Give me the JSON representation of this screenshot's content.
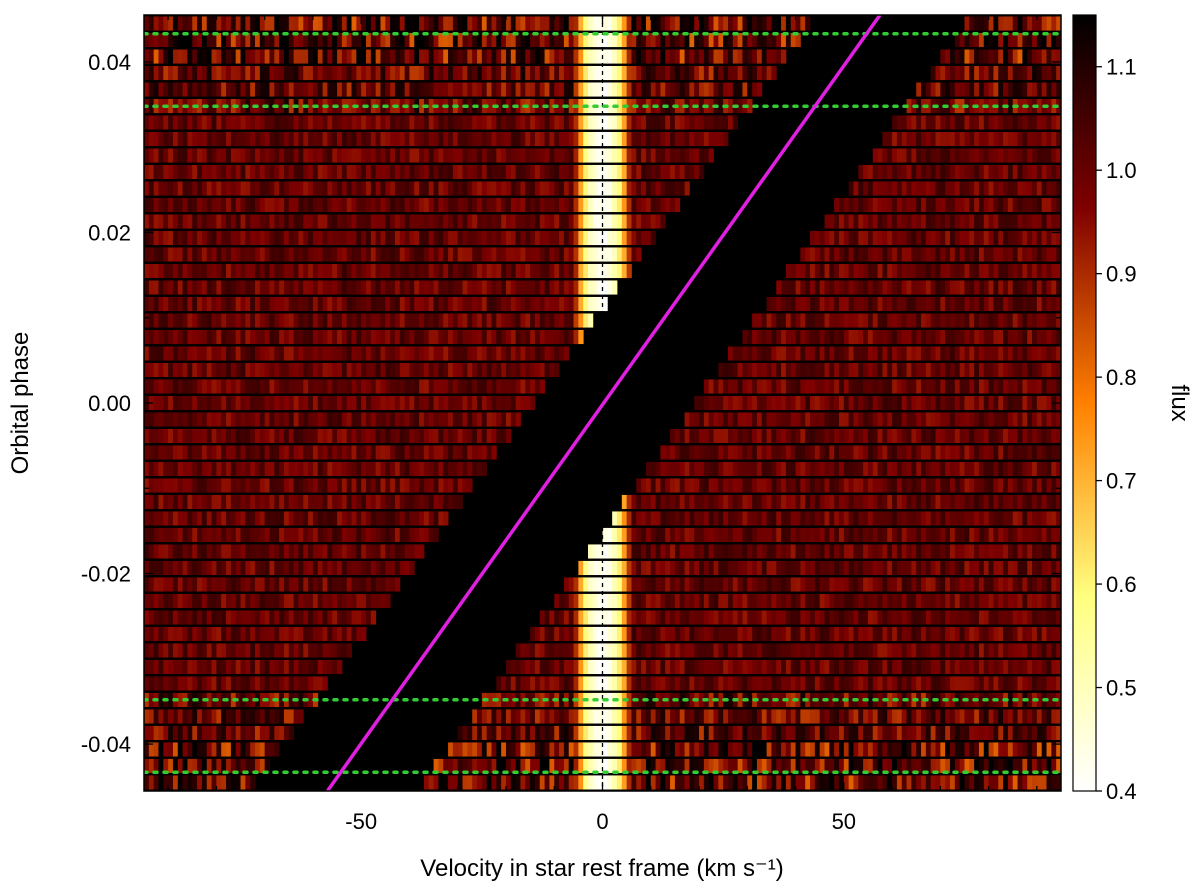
{
  "chart_data": {
    "type": "heatmap",
    "title": "",
    "xlabel": "Velocity in star rest frame (km s⁻¹)",
    "ylabel": "Orbital phase",
    "xlim": [
      -95,
      95
    ],
    "ylim": [
      -0.0455,
      0.0455
    ],
    "x_ticks": [
      -50,
      0,
      50
    ],
    "x_tick_labels": [
      "-50",
      "0",
      "50"
    ],
    "y_ticks": [
      -0.04,
      -0.02,
      0.0,
      0.02,
      0.04
    ],
    "y_tick_labels": [
      "-0.04",
      "-0.02",
      "0.00",
      "0.02",
      "0.04"
    ],
    "colorbar": {
      "label": "flux",
      "range": [
        0.4,
        1.15
      ],
      "ticks": [
        0.4,
        0.5,
        0.6,
        0.7,
        0.8,
        0.9,
        1.0,
        1.1
      ],
      "tick_labels": [
        "0.4",
        "0.5",
        "0.6",
        "0.7",
        "0.8",
        "0.9",
        "1.0",
        "1.1"
      ],
      "colormap": "inverted afmhot (white = low flux, black = high flux)"
    },
    "exposures": {
      "count": 47,
      "phase_min": -0.0445,
      "phase_max": 0.0445
    },
    "masked_band": {
      "description": "planet-trace region masked (black)",
      "lower_edge_at_phase_min": -72,
      "upper_edge_at_phase_min": -37,
      "lower_edge_at_phase_max": 43,
      "upper_edge_at_phase_max": 75
    },
    "stellar_line": {
      "center_velocity": 0,
      "half_width": 6,
      "min_flux": 0.42
    },
    "series": [
      {
        "type": "line",
        "color": "#e020e0",
        "x": [
          -57,
          57.5
        ],
        "y": [
          -0.0455,
          0.0455
        ]
      }
    ],
    "reference_lines": {
      "vertical_dashed_x": 0,
      "horizontal_dotted_y": [
        -0.0433,
        -0.0348,
        0.0348,
        0.0433
      ],
      "dotted_color": "#33cc33"
    }
  }
}
